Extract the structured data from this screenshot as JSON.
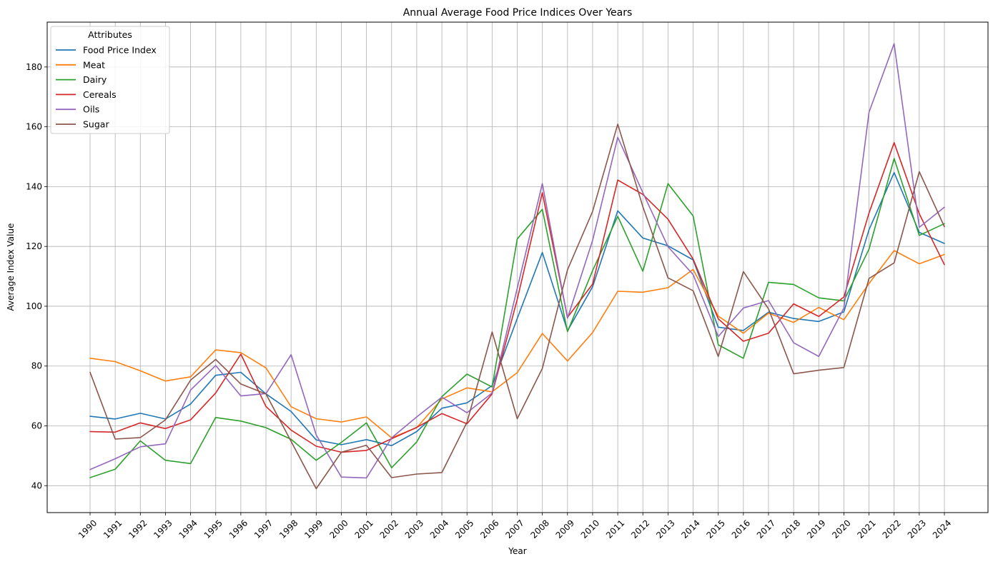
{
  "chart_data": {
    "type": "line",
    "title": "Annual Average Food Price Indices Over Years",
    "xlabel": "Year",
    "ylabel": "Average Index Value",
    "x": [
      "1990",
      "1991",
      "1992",
      "1993",
      "1994",
      "1995",
      "1996",
      "1997",
      "1998",
      "1999",
      "2000",
      "2001",
      "2002",
      "2003",
      "2004",
      "2005",
      "2006",
      "2007",
      "2008",
      "2009",
      "2010",
      "2011",
      "2012",
      "2013",
      "2014",
      "2015",
      "2016",
      "2017",
      "2018",
      "2019",
      "2020",
      "2021",
      "2022",
      "2023",
      "2024"
    ],
    "ylim": [
      31,
      195
    ],
    "yticks": [
      40,
      60,
      80,
      100,
      120,
      140,
      160,
      180
    ],
    "grid": true,
    "legend": {
      "title": "Attributes",
      "position": "top-left"
    },
    "series": [
      {
        "name": "Food Price Index",
        "color": "#1f77b4",
        "values": [
          63.2,
          62.3,
          64.2,
          62.3,
          67.3,
          76.9,
          77.9,
          70.7,
          64.8,
          55.3,
          53.7,
          55.4,
          53.4,
          58.1,
          65.9,
          67.7,
          73.5,
          95.9,
          118.0,
          91.8,
          106.5,
          131.9,
          122.8,
          120.2,
          115.5,
          93.0,
          91.9,
          98.0,
          95.9,
          94.9,
          98.1,
          125.6,
          144.7,
          124.7,
          121.0
        ]
      },
      {
        "name": "Meat",
        "color": "#ff7f0e",
        "values": [
          82.6,
          81.5,
          78.4,
          75.0,
          76.4,
          85.4,
          84.5,
          79.4,
          66.4,
          62.4,
          61.3,
          63.0,
          56.0,
          59.4,
          69.0,
          72.7,
          71.4,
          77.8,
          90.9,
          81.7,
          91.2,
          105.0,
          104.7,
          106.2,
          112.3,
          96.7,
          91.0,
          97.7,
          94.6,
          99.6,
          95.5,
          107.6,
          118.6,
          114.2,
          117.3
        ]
      },
      {
        "name": "Dairy",
        "color": "#2ca02c",
        "values": [
          42.7,
          45.5,
          55.0,
          48.5,
          47.4,
          62.8,
          61.6,
          59.4,
          55.5,
          48.5,
          54.5,
          61.0,
          46.0,
          54.6,
          69.8,
          77.3,
          73.0,
          122.5,
          132.4,
          91.5,
          111.9,
          130.1,
          111.7,
          141.0,
          130.2,
          87.1,
          82.6,
          108.0,
          107.3,
          102.8,
          101.8,
          119.1,
          149.4,
          123.7,
          127.6
        ]
      },
      {
        "name": "Cereals",
        "color": "#d62728",
        "values": [
          58.1,
          57.9,
          61.0,
          59.1,
          62.0,
          71.0,
          84.0,
          66.5,
          58.6,
          53.2,
          51.2,
          51.8,
          55.7,
          59.5,
          64.1,
          60.7,
          70.7,
          102.3,
          138.0,
          96.3,
          107.4,
          142.2,
          137.4,
          129.1,
          115.8,
          95.8,
          88.3,
          91.0,
          100.8,
          96.6,
          103.1,
          131.2,
          154.7,
          130.9,
          113.9
        ]
      },
      {
        "name": "Oils",
        "color": "#9467bd",
        "values": [
          45.4,
          49.0,
          53.0,
          54.0,
          72.0,
          80.2,
          70.0,
          70.8,
          83.8,
          57.0,
          42.9,
          42.6,
          56.0,
          63.0,
          69.6,
          64.4,
          71.0,
          106.0,
          141.0,
          96.0,
          122.0,
          156.5,
          138.0,
          119.9,
          110.6,
          89.9,
          99.4,
          101.9,
          87.8,
          83.2,
          99.4,
          164.9,
          187.8,
          126.4,
          133.1
        ]
      },
      {
        "name": "Sugar",
        "color": "#8c564b",
        "values": [
          77.9,
          55.6,
          56.1,
          62.0,
          75.3,
          82.2,
          74.0,
          70.7,
          54.8,
          39.0,
          51.2,
          53.5,
          42.7,
          43.9,
          44.4,
          61.2,
          91.4,
          62.4,
          79.2,
          112.2,
          131.7,
          160.9,
          133.3,
          109.5,
          105.2,
          83.2,
          111.6,
          99.1,
          77.4,
          78.6,
          79.5,
          109.3,
          114.5,
          145.0,
          126.6
        ]
      }
    ]
  }
}
